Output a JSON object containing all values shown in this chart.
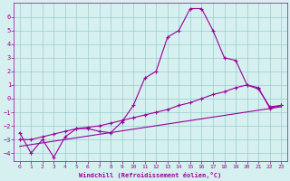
{
  "xlabel": "Windchill (Refroidissement éolien,°C)",
  "bg_color": "#d6f0f0",
  "line_color": "#990099",
  "grid_color": "#99cccc",
  "xlim": [
    -0.5,
    23.5
  ],
  "ylim": [
    -4.6,
    7.0
  ],
  "xticks": [
    0,
    1,
    2,
    3,
    4,
    5,
    6,
    7,
    8,
    9,
    10,
    11,
    12,
    13,
    14,
    15,
    16,
    17,
    18,
    19,
    20,
    21,
    22,
    23
  ],
  "yticks": [
    -4,
    -3,
    -2,
    -1,
    0,
    1,
    2,
    3,
    4,
    5,
    6
  ],
  "line1_x": [
    0,
    1,
    2,
    3,
    4,
    5,
    6,
    7,
    8,
    9,
    10,
    11,
    12,
    13,
    14,
    15,
    16,
    17,
    18,
    19,
    20,
    21,
    22,
    23
  ],
  "line1_y": [
    -2.5,
    -4.0,
    -3.0,
    -4.3,
    -2.8,
    -2.2,
    -2.2,
    -2.4,
    -2.5,
    -1.7,
    -0.5,
    1.5,
    2.0,
    4.5,
    5.0,
    6.6,
    6.6,
    5.0,
    3.0,
    2.8,
    1.0,
    0.7,
    -0.6,
    -0.5
  ],
  "line2_x": [
    0,
    1,
    2,
    3,
    4,
    5,
    6,
    7,
    8,
    9,
    10,
    11,
    12,
    13,
    14,
    15,
    16,
    17,
    18,
    19,
    20,
    21,
    22,
    23
  ],
  "line2_y": [
    -3.0,
    -3.0,
    -2.8,
    -2.6,
    -2.4,
    -2.2,
    -2.1,
    -2.0,
    -1.8,
    -1.6,
    -1.4,
    -1.2,
    -1.0,
    -0.8,
    -0.5,
    -0.3,
    0.0,
    0.3,
    0.5,
    0.8,
    1.0,
    0.8,
    -0.7,
    -0.5
  ],
  "line3_x": [
    0,
    23
  ],
  "line3_y": [
    -3.5,
    -0.6
  ]
}
